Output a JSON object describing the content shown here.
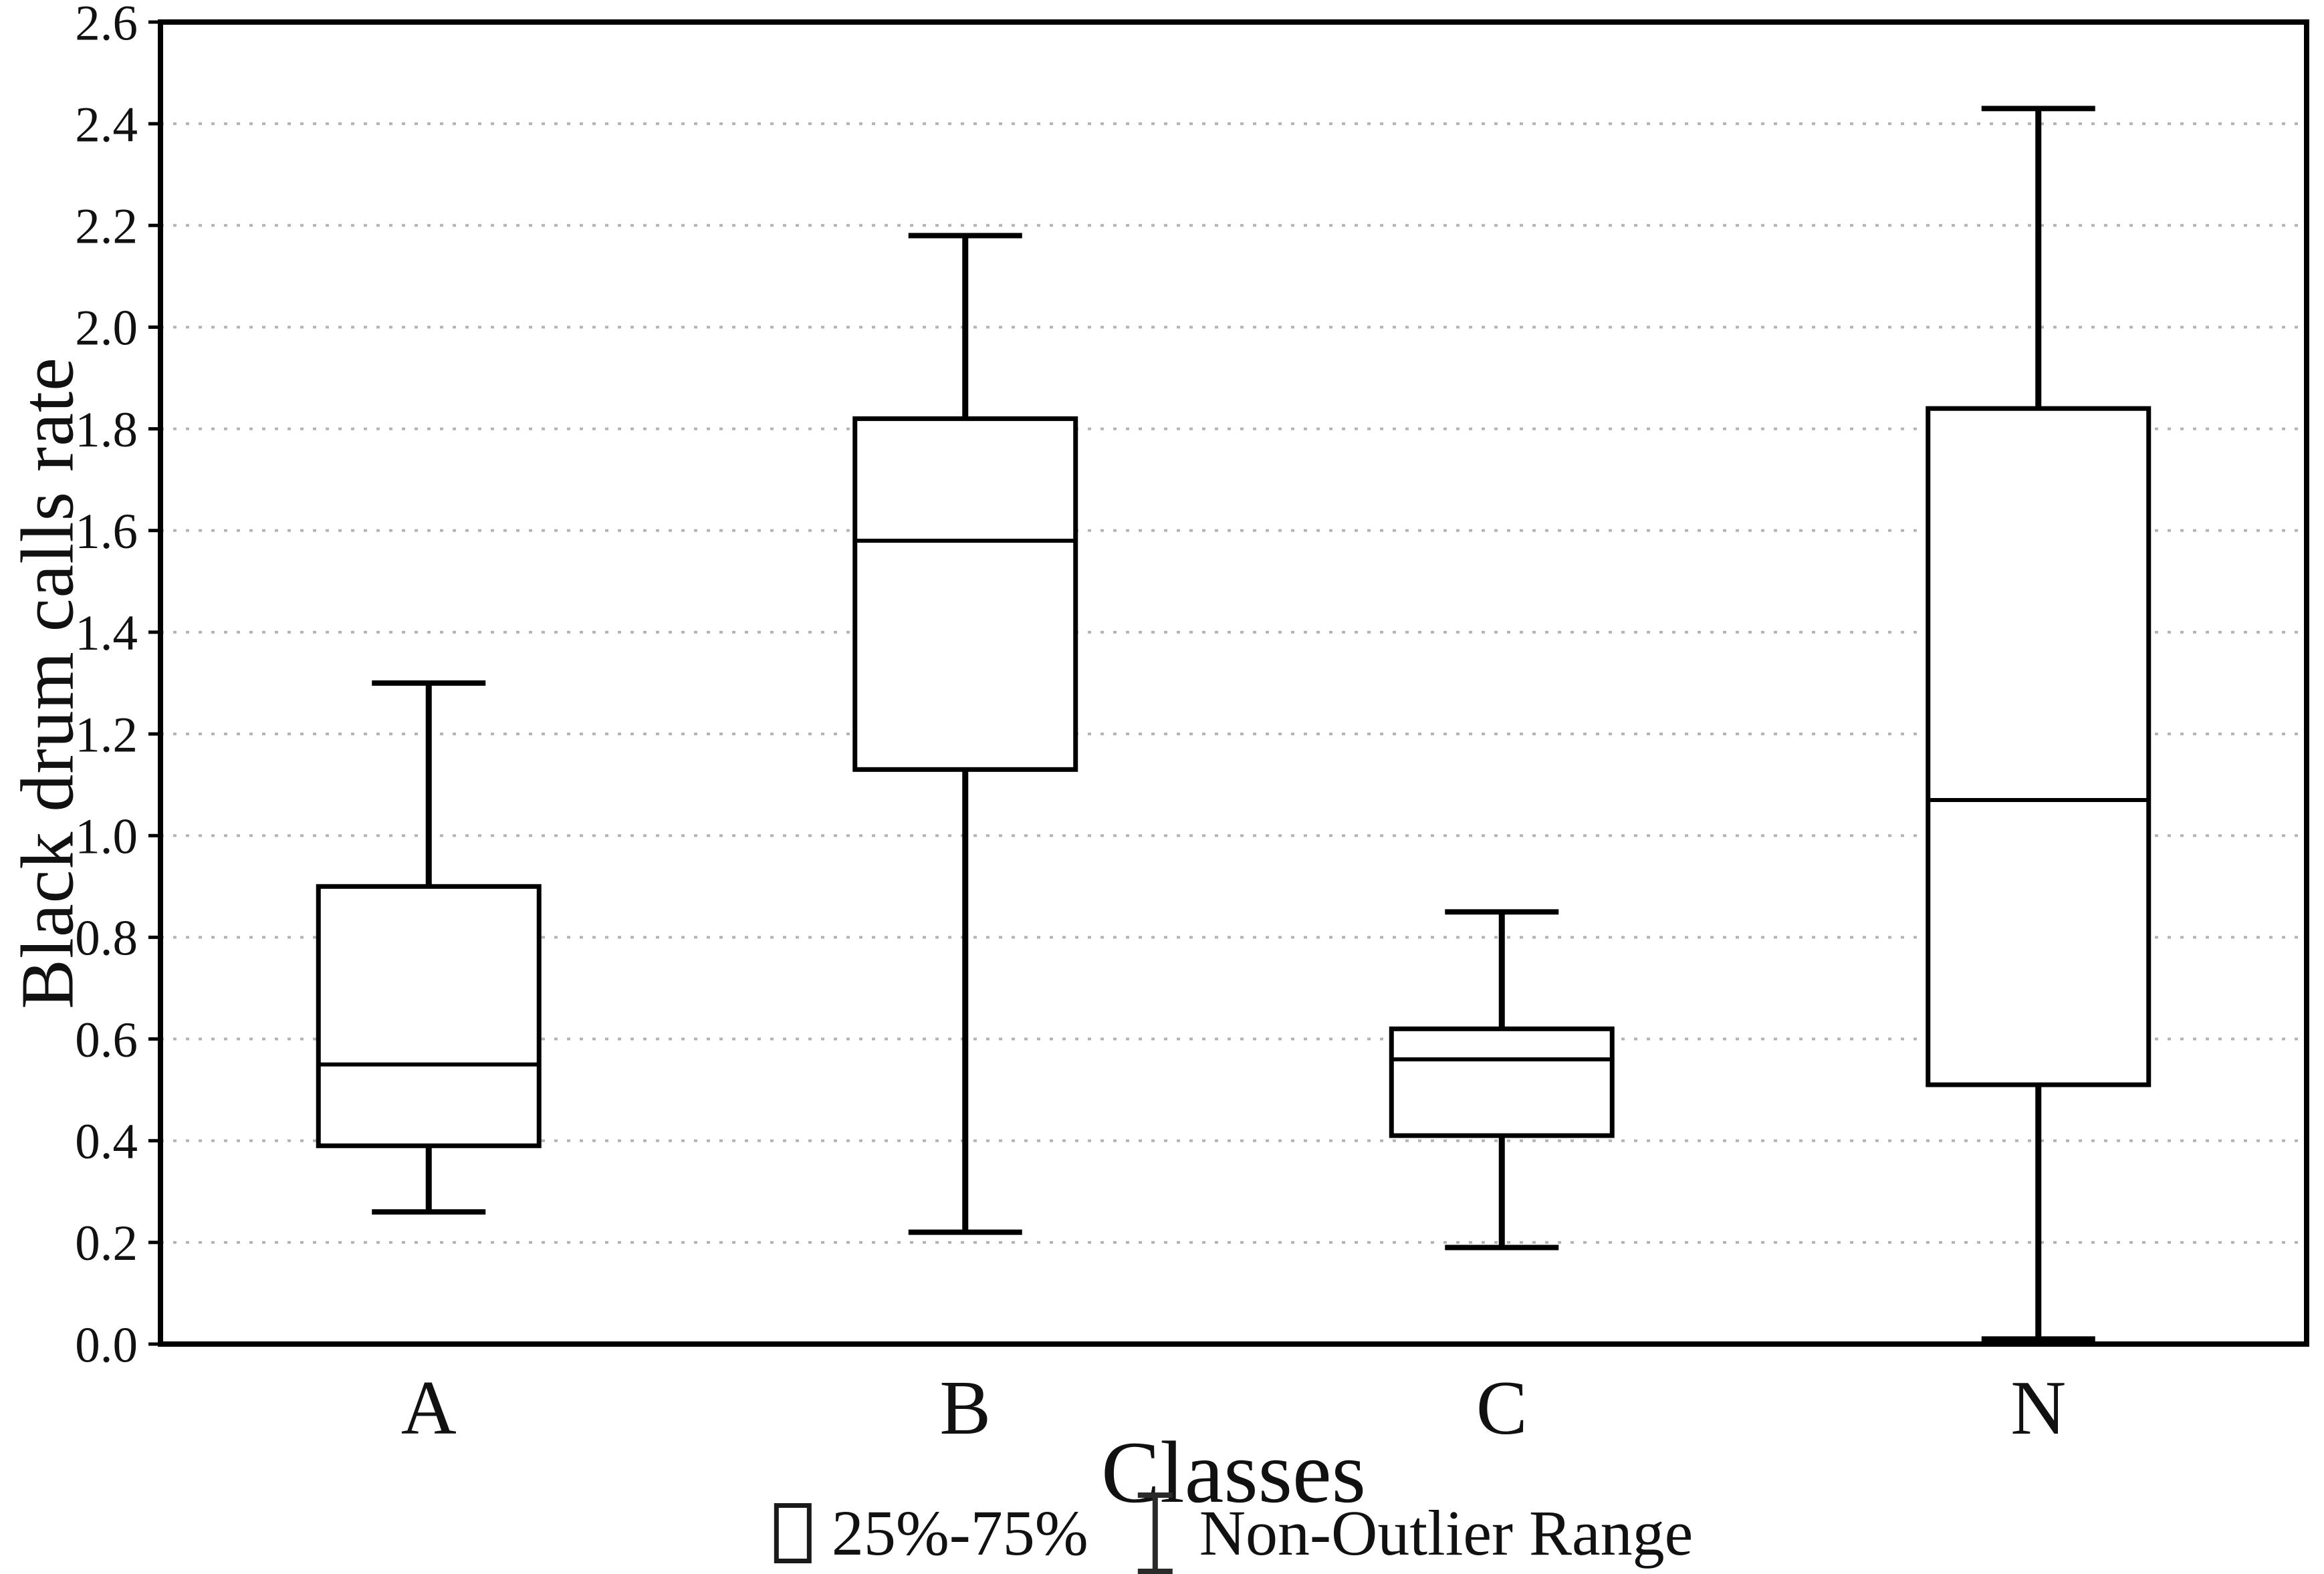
{
  "figure": {
    "title": "",
    "background": "#ffffff"
  },
  "chart_data": {
    "type": "box",
    "title": "",
    "xlabel": "Classes",
    "ylabel": "Black drum calls rate",
    "categories": [
      "A",
      "B",
      "C",
      "N"
    ],
    "series": [
      {
        "name": "A",
        "whisker_low": 0.26,
        "q1": 0.39,
        "median": 0.55,
        "q3": 0.9,
        "whisker_high": 1.3
      },
      {
        "name": "B",
        "whisker_low": 0.22,
        "q1": 1.13,
        "median": 1.58,
        "q3": 1.82,
        "whisker_high": 2.18
      },
      {
        "name": "C",
        "whisker_low": 0.19,
        "q1": 0.41,
        "median": 0.56,
        "q3": 0.62,
        "whisker_high": 0.85
      },
      {
        "name": "N",
        "whisker_low": 0.01,
        "q1": 0.51,
        "median": 1.07,
        "q3": 1.84,
        "whisker_high": 2.43
      }
    ],
    "ylim": [
      0.0,
      2.6
    ],
    "ytick_step": 0.2,
    "ytick_decimals": 1,
    "grid": "horizontal-dotted",
    "legend_position": "bottom-center",
    "legend": [
      {
        "glyph": "box",
        "label": "25%-75%"
      },
      {
        "glyph": "whisker",
        "label": "Non-Outlier Range"
      }
    ]
  },
  "colors": {
    "background": "#ffffff",
    "line": "#000000",
    "box_fill": "#ffffff",
    "text": "#111111",
    "gridline": "#b3b3b3"
  }
}
